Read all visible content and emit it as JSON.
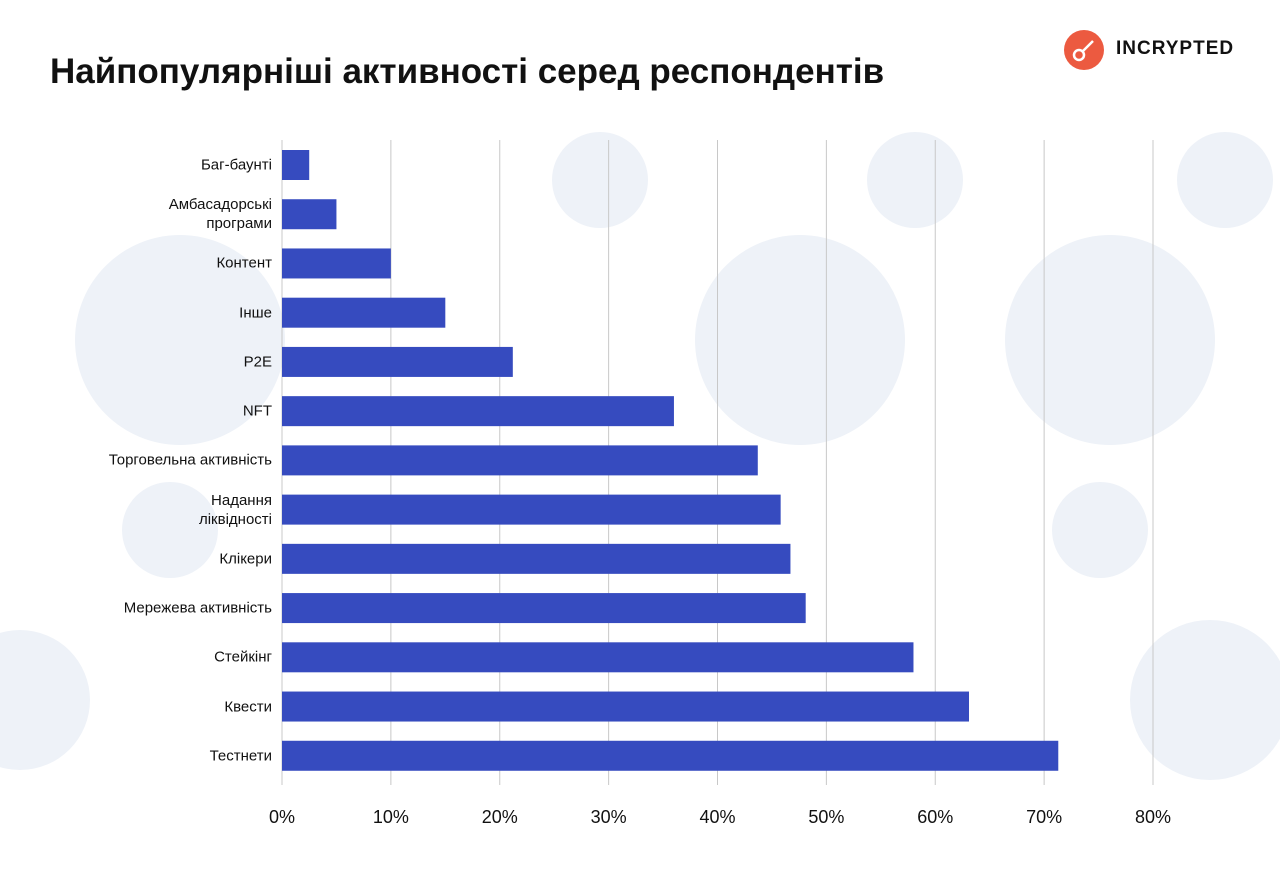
{
  "brand": "INCRYPTED",
  "chart_data": {
    "type": "bar",
    "orientation": "horizontal",
    "title": "Найпопулярніші активності серед респондентів",
    "categories": [
      "Баг-баунті",
      "Амбасадорські\nпрограми",
      "Контент",
      "Інше",
      "P2E",
      "NFT",
      "Торговельна активність",
      "Надання\nліквідності",
      "Клікери",
      "Мережева активність",
      "Стейкінг",
      "Квести",
      "Тестнети"
    ],
    "values": [
      2.5,
      5,
      10,
      15,
      21.2,
      36,
      43.7,
      45.8,
      46.7,
      48.1,
      58,
      63.1,
      71.3
    ],
    "color": "#364bbf",
    "xlim": [
      0,
      80
    ],
    "xticks": [
      {
        "value": 0,
        "label": "0%"
      },
      {
        "value": 10,
        "label": "10%"
      },
      {
        "value": 20,
        "label": "20%"
      },
      {
        "value": 30,
        "label": "30%"
      },
      {
        "value": 40,
        "label": "40%"
      },
      {
        "value": 50,
        "label": "50%"
      },
      {
        "value": 60,
        "label": "60%"
      },
      {
        "value": 70,
        "label": "70%"
      },
      {
        "value": 80,
        "label": "80%"
      }
    ],
    "grid": true
  }
}
